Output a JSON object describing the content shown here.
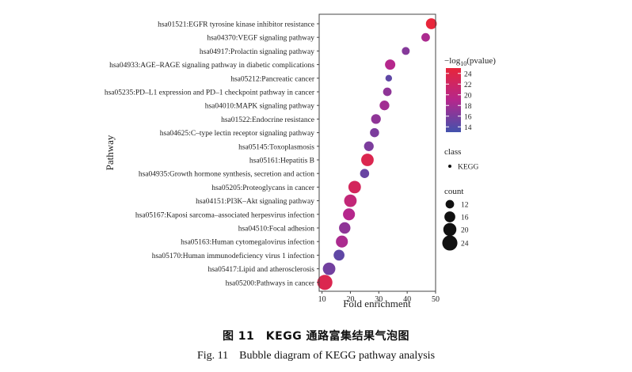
{
  "figure": {
    "caption_zh": "图 11　KEGG 通路富集结果气泡图",
    "caption_en": "Fig. 11　Bubble diagram of KEGG pathway analysis"
  },
  "chart_data": {
    "type": "scatter",
    "title": "",
    "xlabel": "Fold enrichment",
    "ylabel": "Pathway",
    "xlim": [
      9,
      50
    ],
    "xticks": [
      10,
      20,
      30,
      40,
      50
    ],
    "grid": false,
    "categories": [
      "hsa01521:EGFR tyrosine kinase inhibitor resistance",
      "hsa04370:VEGF signaling pathway",
      "hsa04917:Prolactin signaling pathway",
      "hsa04933:AGE–RAGE signaling pathway in diabetic complications",
      "hsa05212:Pancreatic cancer",
      "hsa05235:PD–L1 expression and PD–1 checkpoint pathway in cancer",
      "hsa04010:MAPK signaling pathway",
      "hsa01522:Endocrine resistance",
      "hsa04625:C–type lectin receptor signaling pathway",
      "hsa05145:Toxoplasmosis",
      "hsa05161:Hepatitis B",
      "hsa04935:Growth hormone synthesis, secretion and action",
      "hsa05205:Proteoglycans in cancer",
      "hsa04151:PI3K–Akt signaling pathway",
      "hsa05167:Kaposi sarcoma–associated herpesvirus infection",
      "hsa04510:Focal adhesion",
      "hsa05163:Human cytomegalovirus infection",
      "hsa05170:Human immunodeficiency virus 1 infection",
      "hsa05417:Lipid and atherosclerosis",
      "hsa05200:Pathways in cancer"
    ],
    "points": [
      {
        "fold": 48.5,
        "neglog10p": 25.0,
        "count": 16
      },
      {
        "fold": 46.5,
        "neglog10p": 18.5,
        "count": 12
      },
      {
        "fold": 39.5,
        "neglog10p": 16.5,
        "count": 11
      },
      {
        "fold": 34.0,
        "neglog10p": 19.0,
        "count": 15
      },
      {
        "fold": 33.5,
        "neglog10p": 14.5,
        "count": 9
      },
      {
        "fold": 33.0,
        "neglog10p": 17.0,
        "count": 12
      },
      {
        "fold": 32.0,
        "neglog10p": 18.0,
        "count": 14
      },
      {
        "fold": 29.0,
        "neglog10p": 17.0,
        "count": 14
      },
      {
        "fold": 28.5,
        "neglog10p": 16.0,
        "count": 13
      },
      {
        "fold": 26.5,
        "neglog10p": 16.0,
        "count": 14
      },
      {
        "fold": 26.0,
        "neglog10p": 23.5,
        "count": 19
      },
      {
        "fold": 25.0,
        "neglog10p": 15.0,
        "count": 13
      },
      {
        "fold": 21.5,
        "neglog10p": 22.5,
        "count": 19
      },
      {
        "fold": 20.0,
        "neglog10p": 20.5,
        "count": 19
      },
      {
        "fold": 19.5,
        "neglog10p": 19.0,
        "count": 18
      },
      {
        "fold": 18.0,
        "neglog10p": 17.0,
        "count": 17
      },
      {
        "fold": 17.0,
        "neglog10p": 18.5,
        "count": 18
      },
      {
        "fold": 16.0,
        "neglog10p": 14.5,
        "count": 16
      },
      {
        "fold": 12.5,
        "neglog10p": 15.5,
        "count": 19
      },
      {
        "fold": 11.0,
        "neglog10p": 23.5,
        "count": 24
      }
    ],
    "color_legend": {
      "title_prefix": "−log",
      "title_sub": "10",
      "title_suffix": "(pvalue)",
      "range": [
        13,
        25
      ],
      "ticks": [
        14,
        16,
        18,
        20,
        22,
        24
      ],
      "low_color": "#4252ad",
      "mid_color": "#b5278c",
      "high_color": "#e8253a"
    },
    "shape_legend": {
      "title": "class",
      "entries": [
        "KEGG"
      ]
    },
    "size_legend": {
      "title": "count",
      "values": [
        12,
        16,
        20,
        24
      ]
    }
  }
}
